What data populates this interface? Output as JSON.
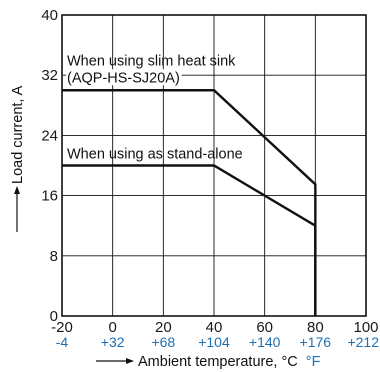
{
  "chart_data": {
    "type": "line",
    "title": "",
    "xlabel": "Ambient temperature, °C",
    "xlabel_unit_f": "°F",
    "ylabel": "Load current, A",
    "xlim": [
      -20,
      100
    ],
    "ylim": [
      0,
      40
    ],
    "grid": true,
    "x_ticks_c": [
      "-20",
      "0",
      "20",
      "40",
      "60",
      "80",
      "100"
    ],
    "x_ticks_f": [
      "-4",
      "+32",
      "+68",
      "+104",
      "+140",
      "+176",
      "+212"
    ],
    "y_ticks": [
      "0",
      "8",
      "16",
      "24",
      "32",
      "40"
    ],
    "series": [
      {
        "label_line1": "When using slim heat sink",
        "label_line2": "(AQP-HS-SJ20A)",
        "x": [
          -20,
          40,
          80,
          80
        ],
        "y": [
          30,
          30,
          17.5,
          0
        ]
      },
      {
        "label_line1": "When using as stand-alone",
        "x": [
          -20,
          40,
          80,
          80
        ],
        "y": [
          20,
          20,
          12,
          0
        ]
      }
    ]
  },
  "colors": {
    "axis": "#111111",
    "grid": "#111111",
    "line": "#111111",
    "fahrenheit": "#1f6fb2"
  }
}
